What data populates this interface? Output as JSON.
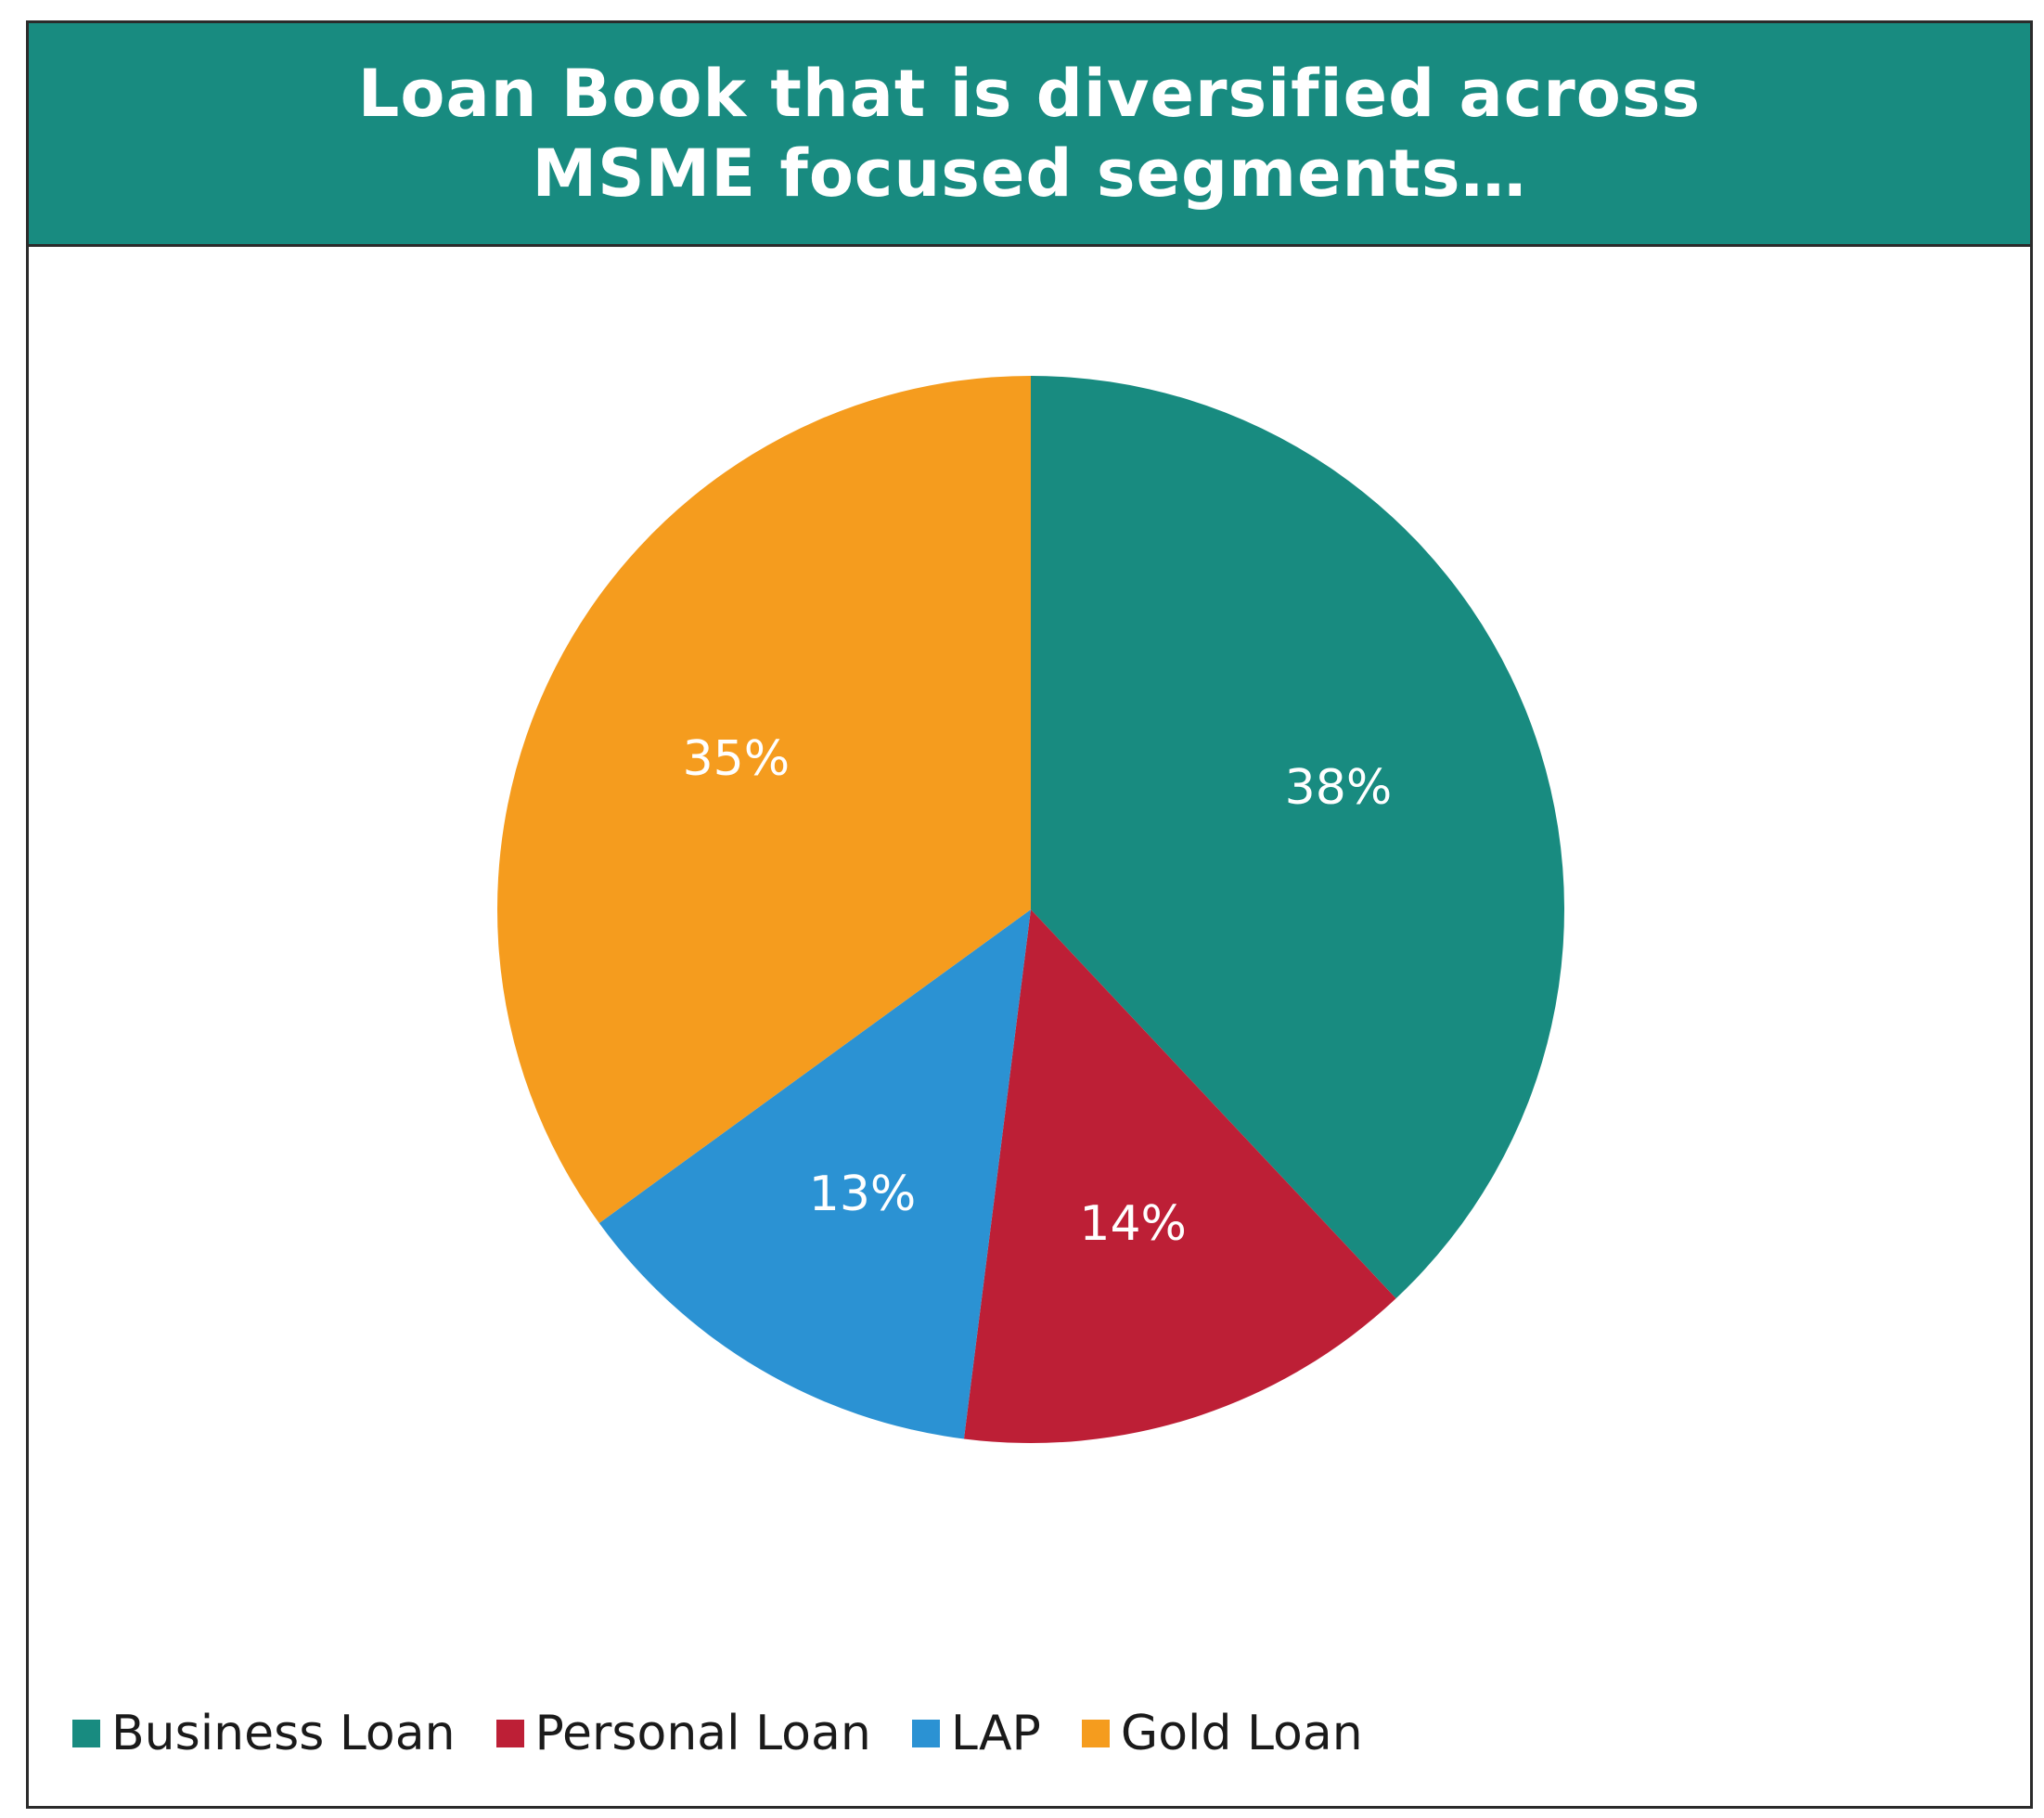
{
  "header": {
    "title_line1": "Loan Book that is diversified across",
    "title_line2": "MSME focused segments…",
    "background_color": "#188b80"
  },
  "chart_data": {
    "type": "pie",
    "title": "Loan Book that is diversified across MSME focused segments…",
    "start_angle_deg": 0,
    "direction": "clockwise",
    "legend_position": "bottom-left",
    "slices": [
      {
        "name": "Business Loan",
        "value": 38,
        "label": "38%",
        "color": "#188b80"
      },
      {
        "name": "Personal Loan",
        "value": 14,
        "label": "14%",
        "color": "#bd1f36"
      },
      {
        "name": "LAP",
        "value": 13,
        "label": "13%",
        "color": "#2b92d3"
      },
      {
        "name": "Gold Loan",
        "value": 35,
        "label": "35%",
        "color": "#f59c1e"
      }
    ]
  }
}
